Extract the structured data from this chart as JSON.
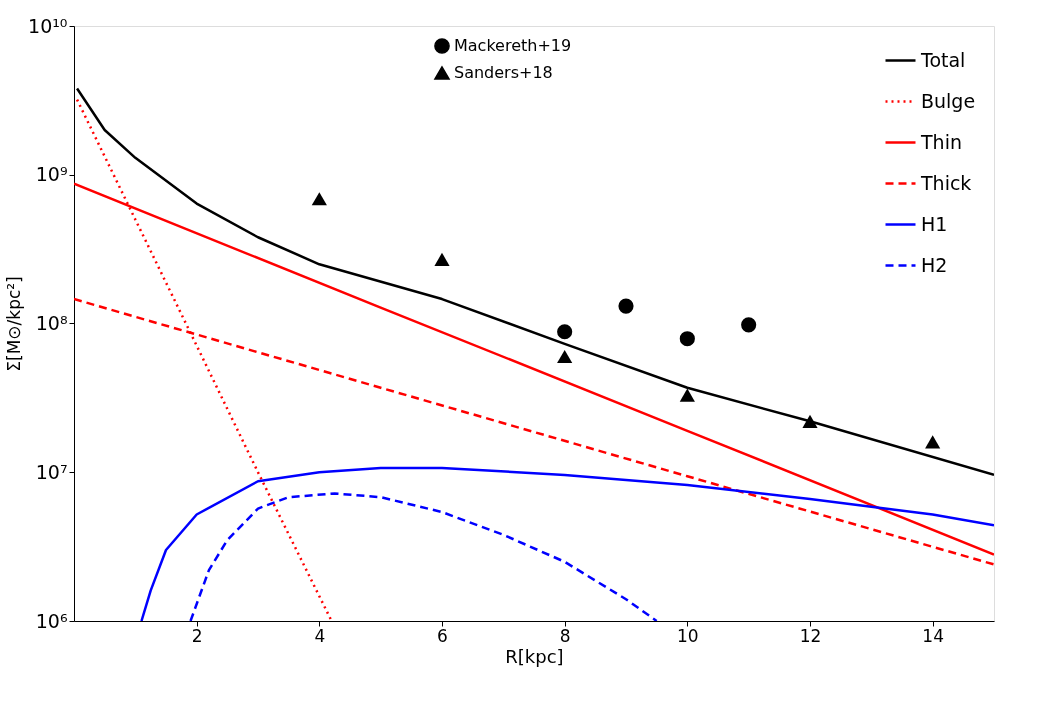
{
  "chart_data": {
    "type": "line",
    "xlabel": "R[kpc]",
    "ylabel": "Σ[M⊙/kpc²]",
    "xlim": [
      0,
      15
    ],
    "xticks": [
      2,
      4,
      6,
      8,
      10,
      12,
      14
    ],
    "ylim": [
      1000000,
      10000000000
    ],
    "log": "y",
    "yticks": [
      {
        "value": 1000000,
        "label": "10⁶"
      },
      {
        "value": 10000000,
        "label": "10⁷"
      },
      {
        "value": 100000000,
        "label": "10⁸"
      },
      {
        "value": 1000000000,
        "label": "10⁹"
      },
      {
        "value": 10000000000,
        "label": "10¹⁰"
      }
    ],
    "grid": false,
    "legend": "top right",
    "series": [
      {
        "name": "Total",
        "color": "#000000",
        "line_style": "solid",
        "x": [
          0.05,
          0.5,
          1,
          2,
          3,
          4,
          6,
          8,
          10,
          12,
          15
        ],
        "values": [
          3800000000,
          2000000000,
          1300000000,
          640000000,
          380000000,
          250000000,
          146000000,
          73000000,
          37000000,
          22000000,
          9600000
        ]
      },
      {
        "name": "Bulge",
        "color": "#ff0000",
        "line_style": "dotted",
        "x": [
          0.05,
          1,
          2,
          3,
          4.2
        ],
        "values": [
          3200000000,
          500000000,
          71000000,
          10000000,
          1000000
        ]
      },
      {
        "name": "Thin",
        "color": "#ff0000",
        "line_style": "solid",
        "x": [
          0,
          5,
          10,
          15
        ],
        "values": [
          870000000,
          128000000,
          19000000,
          2800000
        ]
      },
      {
        "name": "Thick",
        "color": "#ff0000",
        "line_style": "dashed",
        "x": [
          0,
          5,
          10,
          15
        ],
        "values": [
          146000000,
          37000000,
          9400000,
          2400000
        ]
      },
      {
        "name": "H1",
        "color": "#0000ff",
        "line_style": "solid",
        "x": [
          1.1,
          1.25,
          1.5,
          2,
          3,
          4,
          5,
          6,
          8,
          10,
          12,
          14,
          15
        ],
        "values": [
          1000000,
          1600000,
          3000000,
          5200000,
          8700000,
          10000000,
          10700000,
          10700000,
          9600000,
          8200000,
          6600000,
          5200000,
          4400000
        ]
      },
      {
        "name": "H2",
        "color": "#0000ff",
        "line_style": "dashed",
        "x": [
          1.9,
          2.2,
          2.5,
          3,
          3.5,
          4.25,
          5,
          6,
          7,
          8,
          9,
          9.5
        ],
        "values": [
          1000000,
          2200000,
          3500000,
          5700000,
          6800000,
          7200000,
          6800000,
          5400000,
          3800000,
          2500000,
          1400000,
          1000000
        ]
      },
      {
        "name": "Mackereth+19",
        "type": "scatter",
        "marker": "circle",
        "color": "#000000",
        "x": [
          8,
          9,
          10,
          11
        ],
        "values": [
          88000000,
          131000000,
          79000000,
          98000000
        ]
      },
      {
        "name": "Sanders+18",
        "type": "scatter",
        "marker": "triangle",
        "color": "#000000",
        "x": [
          4,
          6,
          8,
          10,
          12,
          14
        ],
        "values": [
          690000000,
          270000000,
          60000000,
          33000000,
          22000000,
          16000000
        ]
      }
    ]
  }
}
